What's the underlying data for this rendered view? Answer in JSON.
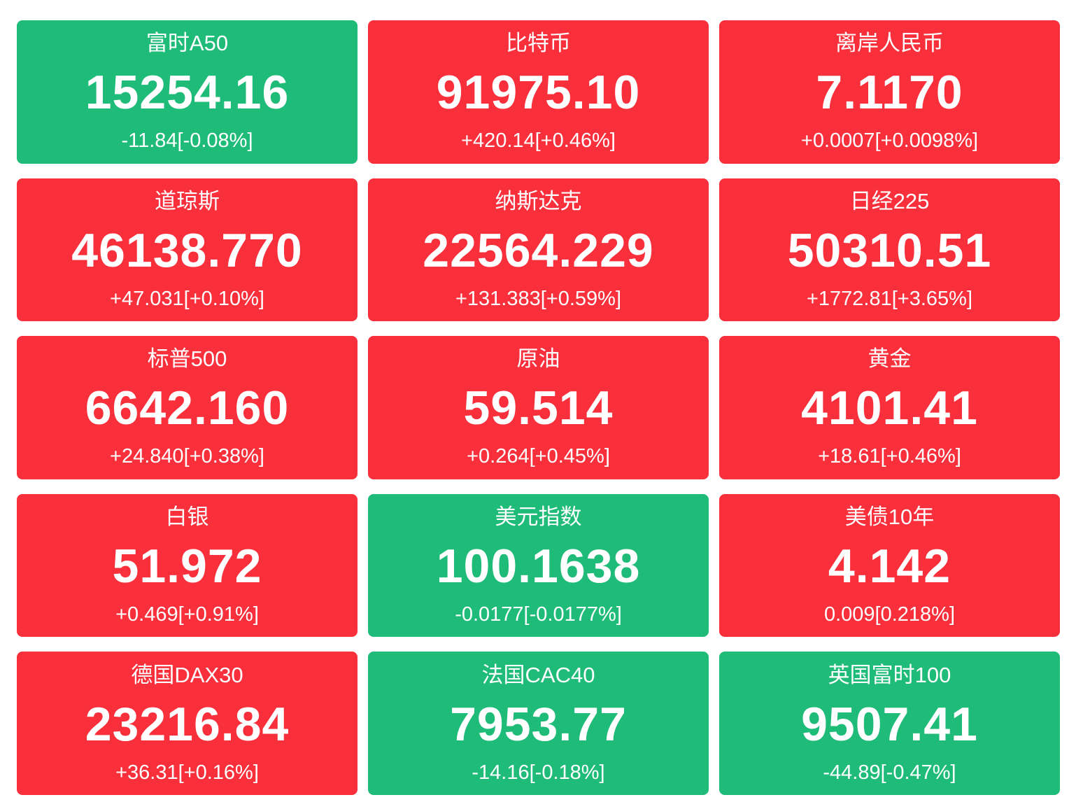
{
  "colors": {
    "up_background": "#f92f3b",
    "down_background": "#1ebc78",
    "text": "#ffffff",
    "page_background": "#ffffff"
  },
  "tiles": [
    {
      "name": "富时A50",
      "price": "15254.16",
      "change": "-11.84[-0.08%]",
      "state": "down"
    },
    {
      "name": "比特币",
      "price": "91975.10",
      "change": "+420.14[+0.46%]",
      "state": "up"
    },
    {
      "name": "离岸人民币",
      "price": "7.1170",
      "change": "+0.0007[+0.0098%]",
      "state": "up"
    },
    {
      "name": "道琼斯",
      "price": "46138.770",
      "change": "+47.031[+0.10%]",
      "state": "up"
    },
    {
      "name": "纳斯达克",
      "price": "22564.229",
      "change": "+131.383[+0.59%]",
      "state": "up"
    },
    {
      "name": "日经225",
      "price": "50310.51",
      "change": "+1772.81[+3.65%]",
      "state": "up"
    },
    {
      "name": "标普500",
      "price": "6642.160",
      "change": "+24.840[+0.38%]",
      "state": "up"
    },
    {
      "name": "原油",
      "price": "59.514",
      "change": "+0.264[+0.45%]",
      "state": "up"
    },
    {
      "name": "黄金",
      "price": "4101.41",
      "change": "+18.61[+0.46%]",
      "state": "up"
    },
    {
      "name": "白银",
      "price": "51.972",
      "change": "+0.469[+0.91%]",
      "state": "up"
    },
    {
      "name": "美元指数",
      "price": "100.1638",
      "change": "-0.0177[-0.0177%]",
      "state": "down"
    },
    {
      "name": "美债10年",
      "price": "4.142",
      "change": "0.009[0.218%]",
      "state": "up"
    },
    {
      "name": "德国DAX30",
      "price": "23216.84",
      "change": "+36.31[+0.16%]",
      "state": "up"
    },
    {
      "name": "法国CAC40",
      "price": "7953.77",
      "change": "-14.16[-0.18%]",
      "state": "down"
    },
    {
      "name": "英国富时100",
      "price": "9507.41",
      "change": "-44.89[-0.47%]",
      "state": "down"
    }
  ]
}
